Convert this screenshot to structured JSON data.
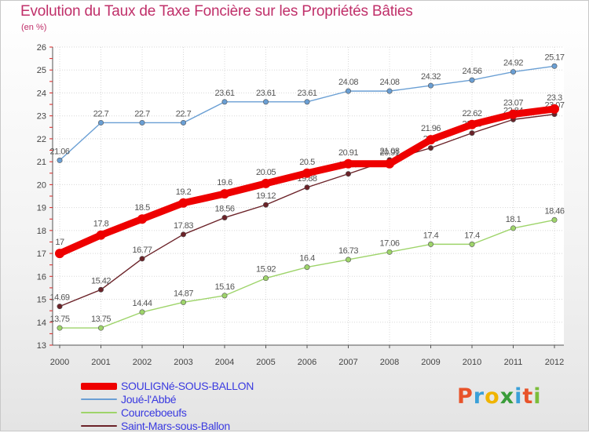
{
  "chart_data": {
    "type": "line",
    "title": "Evolution du Taux de Taxe Foncière sur les Propriétés Bâties",
    "ylabel": "(en %)",
    "xlabel": "",
    "ylim": [
      13,
      26
    ],
    "yticks": [
      "13",
      "14",
      "15",
      "16",
      "17",
      "18",
      "19",
      "20",
      "21",
      "22",
      "23",
      "24",
      "25",
      "26"
    ],
    "categories": [
      "2000",
      "2001",
      "2002",
      "2003",
      "2004",
      "2005",
      "2006",
      "2007",
      "2008",
      "2009",
      "2010",
      "2011",
      "2012"
    ],
    "series": [
      {
        "name": "Joué-l'Abbé",
        "color": "#6a9fd4",
        "values": [
          21.06,
          22.7,
          22.7,
          22.7,
          23.61,
          23.61,
          23.61,
          24.08,
          24.08,
          24.32,
          24.56,
          24.92,
          25.17
        ],
        "labels": [
          "21.06",
          "22.7",
          "22.7",
          "22.7",
          "23.61",
          "23.61",
          "23.61",
          "24.08",
          "24.08",
          "24.32",
          "24.56",
          "24.92",
          "25.17"
        ]
      },
      {
        "name": "Courceboeufs",
        "color": "#9ed46a",
        "values": [
          13.75,
          13.75,
          14.44,
          14.87,
          15.16,
          15.92,
          16.4,
          16.73,
          17.06,
          17.4,
          17.4,
          18.1,
          18.46
        ],
        "labels": [
          "13.75",
          "13.75",
          "14.44",
          "14.87",
          "15.16",
          "15.92",
          "16.4",
          "16.73",
          "17.06",
          "17.4",
          "17.4",
          "18.1",
          "18.46"
        ]
      },
      {
        "name": "Saint-Mars-sous-Ballon",
        "color": "#6b2228",
        "values": [
          14.69,
          15.42,
          16.77,
          17.83,
          18.56,
          19.12,
          19.88,
          20.47,
          21.08,
          21.6,
          22.25,
          22.84,
          23.07
        ],
        "labels": [
          "14.69",
          "15.42",
          "16.77",
          "17.83",
          "18.56",
          "19.12",
          "19.88",
          "20.47",
          "21.08",
          "21.6",
          "22.25",
          "22.84",
          "23.07"
        ]
      },
      {
        "name": "SOULIGNé-SOUS-BALLON",
        "color": "#ee0000",
        "values": [
          17,
          17.8,
          18.5,
          19.2,
          19.6,
          20.05,
          20.5,
          20.91,
          20.91,
          21.96,
          22.62,
          23.07,
          23.3
        ],
        "labels": [
          "17",
          "17.8",
          "18.5",
          "19.2",
          "19.6",
          "20.05",
          "20.5",
          "20.91",
          "20.91",
          "21.96",
          "22.62",
          "23.07",
          "23.3"
        ]
      }
    ],
    "legend": [
      {
        "name": "SOULIGNé-SOUS-BALLON",
        "color": "#ee0000"
      },
      {
        "name": "Joué-l'Abbé",
        "color": "#6a9fd4"
      },
      {
        "name": "Courceboeufs",
        "color": "#9ed46a"
      },
      {
        "name": "Saint-Mars-sous-Ballon",
        "color": "#6b2228"
      }
    ],
    "legend_position": "bottom-left"
  },
  "branding": {
    "logo_text": "Proxiti",
    "logo_colors": [
      "#e8532a",
      "#3aa0d8",
      "#f0b400",
      "#3a9d3a",
      "#3aa0d8",
      "#e8532a",
      "#7bbd3a"
    ]
  }
}
